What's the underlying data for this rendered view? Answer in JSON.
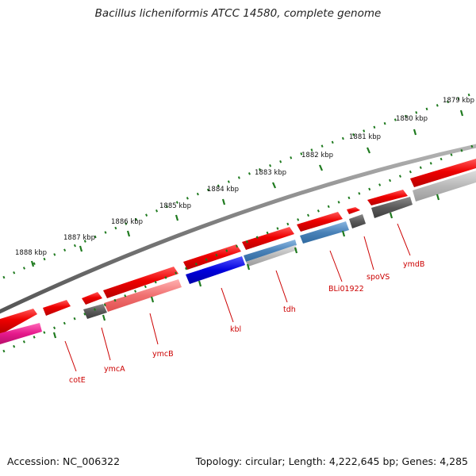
{
  "title": "Bacillus licheniformis ATCC 14580, complete genome",
  "footer": {
    "accession": "Accession: NC_006322",
    "summary": "Topology: circular; Length: 4,222,645 bp; Genes: 4,285"
  },
  "colors": {
    "backbone": "#7a7a7a",
    "tick": "#1e7a1e",
    "forward_cds": "#ee0000",
    "reverse_cds_pink": "#f07070",
    "reverse_cds_blue": "#0000dd",
    "reverse_cds_steel": "#4a82b8",
    "gray_feature": "#5a5a5a",
    "light_gray_feature": "#b8b8b8",
    "magenta_feature": "#e6198c",
    "label": "#cc0000"
  },
  "kbp_labels": [
    "1879 kbp",
    "1880 kbp",
    "1881 kbp",
    "1882 kbp",
    "1883 kbp",
    "1884 kbp",
    "1885 kbp",
    "1886 kbp",
    "1887 kbp",
    "1888 kbp"
  ],
  "gene_labels": [
    "cotE",
    "ymcA",
    "ymcB",
    "kbl",
    "tdh",
    "BLi01922",
    "spoVS",
    "ymdB"
  ]
}
